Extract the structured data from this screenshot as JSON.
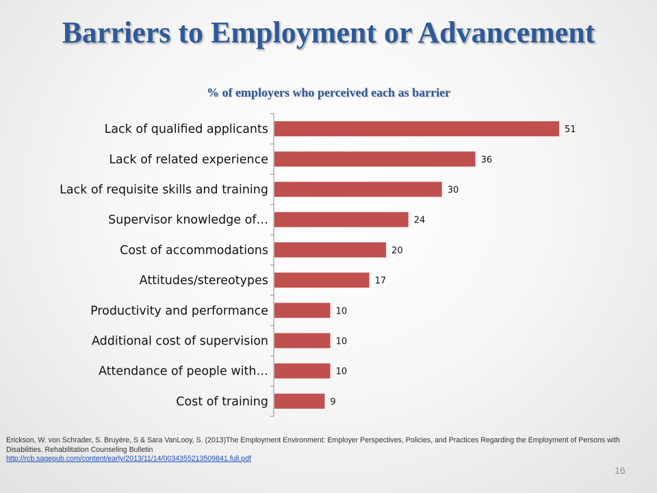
{
  "slide": {
    "title": "Barriers to Employment or Advancement",
    "page_number": "16"
  },
  "citation": {
    "text": "Erickson, W. von Schrader, S. Bruyère, S & Sara VanLooy, S. (2013)The  Employment Environment: Employer Perspectives, Policies, and Practices Regarding the Employment of Persons with Disabilities. Rehabilitation Counseling Bulletin",
    "link": "http://rcb.sagepub.com/content/early/2013/11/14/0034355213509841.full.pdf"
  },
  "chart_data": {
    "type": "bar",
    "orientation": "horizontal",
    "title": "% of employers who perceived each as barrier",
    "categories": [
      "Lack of qualified applicants",
      "Lack of related experience",
      "Lack of requisite skills and training",
      "Supervisor knowledge of…",
      "Cost of accommodations",
      "Attitudes/stereotypes",
      "Productivity and performance",
      "Additional cost of supervision",
      "Attendance of people with…",
      "Cost of training"
    ],
    "values": [
      51,
      36,
      30,
      24,
      20,
      17,
      10,
      10,
      10,
      9
    ],
    "xlim": [
      0,
      55
    ],
    "grid": false,
    "legend": "none",
    "bar_color": "#c0504d",
    "data_labels": true
  }
}
